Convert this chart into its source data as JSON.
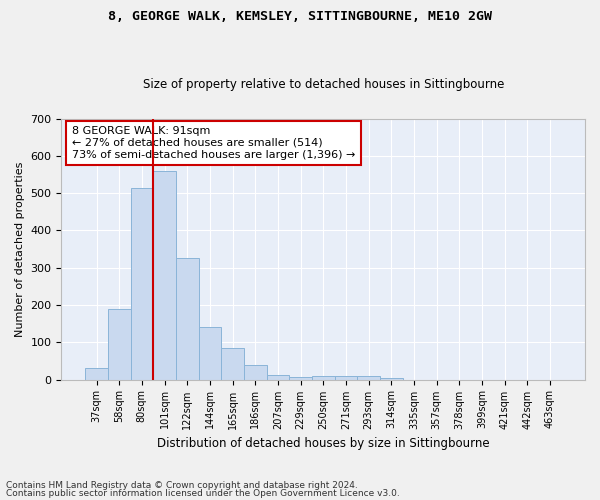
{
  "title": "8, GEORGE WALK, KEMSLEY, SITTINGBOURNE, ME10 2GW",
  "subtitle": "Size of property relative to detached houses in Sittingbourne",
  "xlabel": "Distribution of detached houses by size in Sittingbourne",
  "ylabel": "Number of detached properties",
  "bar_labels": [
    "37sqm",
    "58sqm",
    "80sqm",
    "101sqm",
    "122sqm",
    "144sqm",
    "165sqm",
    "186sqm",
    "207sqm",
    "229sqm",
    "250sqm",
    "271sqm",
    "293sqm",
    "314sqm",
    "335sqm",
    "357sqm",
    "378sqm",
    "399sqm",
    "421sqm",
    "442sqm",
    "463sqm"
  ],
  "bar_values": [
    30,
    190,
    515,
    560,
    325,
    140,
    85,
    38,
    13,
    8,
    9,
    9,
    9,
    5,
    0,
    0,
    0,
    0,
    0,
    0,
    0
  ],
  "bar_color": "#c9d9ef",
  "bar_edge_color": "#8ab4d8",
  "background_color": "#e8eef8",
  "grid_color": "#ffffff",
  "property_line_x": 2.5,
  "property_line_color": "#cc0000",
  "annotation_text": "8 GEORGE WALK: 91sqm\n← 27% of detached houses are smaller (514)\n73% of semi-detached houses are larger (1,396) →",
  "annotation_box_facecolor": "#ffffff",
  "annotation_box_edgecolor": "#cc0000",
  "ylim": [
    0,
    700
  ],
  "yticks": [
    0,
    100,
    200,
    300,
    400,
    500,
    600,
    700
  ],
  "fig_facecolor": "#f0f0f0",
  "footnote1": "Contains HM Land Registry data © Crown copyright and database right 2024.",
  "footnote2": "Contains public sector information licensed under the Open Government Licence v3.0."
}
